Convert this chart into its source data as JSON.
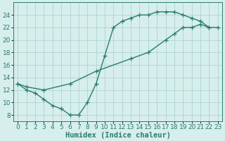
{
  "line1_x": [
    0,
    1,
    2,
    3,
    4,
    5,
    6,
    7,
    8,
    9,
    10,
    11,
    12,
    13,
    14,
    15,
    16,
    17,
    18,
    19,
    20,
    21,
    22
  ],
  "line1_y": [
    13,
    12,
    11.5,
    10.5,
    9.5,
    9,
    8,
    8,
    10,
    13,
    17.5,
    22,
    23,
    23.5,
    24,
    24,
    24.5,
    24.5,
    24.5,
    24,
    23.5,
    23,
    22
  ],
  "line2_x": [
    0,
    1,
    3,
    6,
    9,
    13,
    15,
    17,
    18,
    19,
    20,
    21,
    22,
    23
  ],
  "line2_y": [
    13,
    12.5,
    12,
    13,
    15,
    17,
    18,
    20,
    21,
    22,
    22,
    22.5,
    22,
    22
  ],
  "line_color": "#2a7d6b",
  "bg_color": "#d6eeec",
  "grid_color": "#aed4d0",
  "xlabel": "Humidex (Indice chaleur)",
  "xlim": [
    -0.5,
    23.5
  ],
  "ylim": [
    7,
    26
  ],
  "yticks": [
    8,
    10,
    12,
    14,
    16,
    18,
    20,
    22,
    24
  ],
  "xticks": [
    0,
    1,
    2,
    3,
    4,
    5,
    6,
    7,
    8,
    9,
    10,
    11,
    12,
    13,
    14,
    15,
    16,
    17,
    18,
    19,
    20,
    21,
    22,
    23
  ],
  "marker": "+",
  "markersize": 4,
  "linewidth": 1.0,
  "font_size": 6.5
}
